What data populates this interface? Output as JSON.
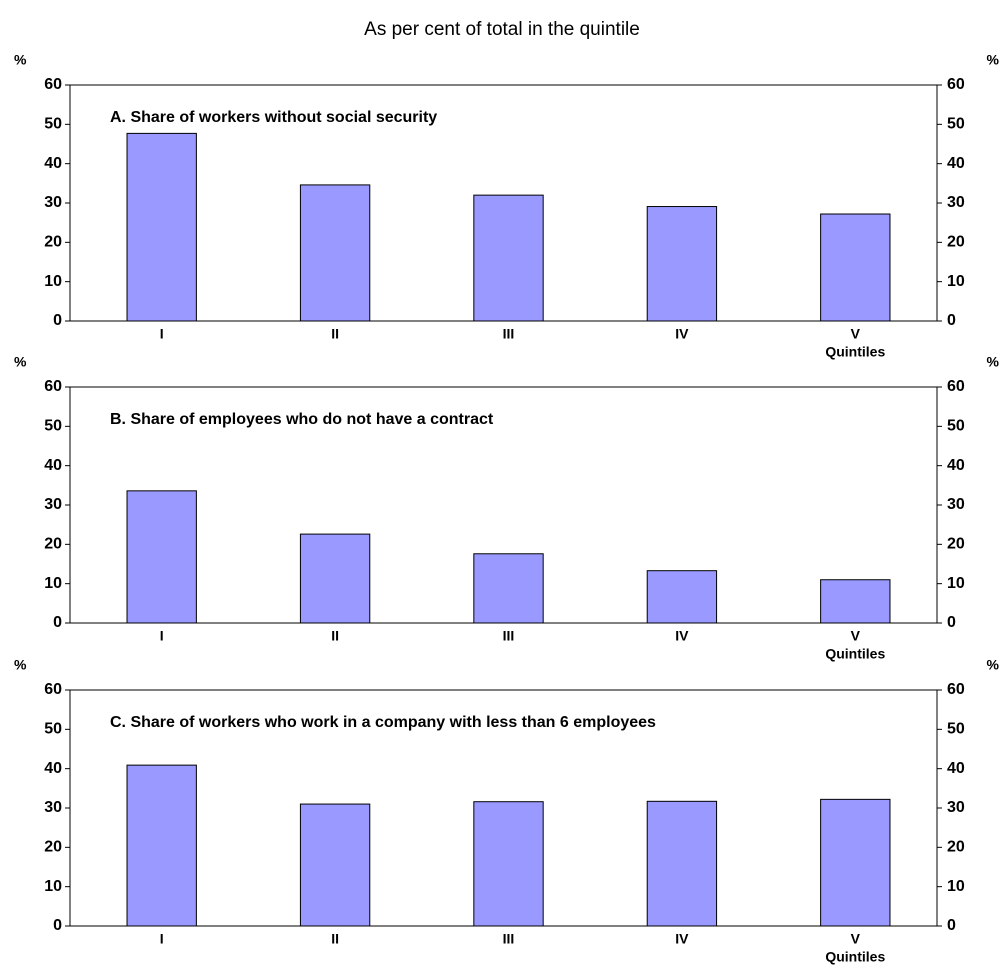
{
  "title": "As per cent of total in the quintile",
  "chart_data": [
    {
      "type": "bar",
      "title": "A. Share of workers without social security",
      "categories": [
        "I",
        "II",
        "III",
        "IV",
        "V"
      ],
      "values": [
        47.7,
        34.6,
        32,
        29.1,
        27.2
      ],
      "color": "#9999ff",
      "xlabel": "Quintiles",
      "ylabel": "%",
      "y2label": "%",
      "ylim": [
        0,
        60
      ],
      "yticks": [
        0,
        10,
        20,
        30,
        40,
        50,
        60
      ],
      "y2lim": [
        0,
        60
      ],
      "y2ticks": [
        0,
        10,
        20,
        30,
        40,
        50,
        60
      ],
      "grid": false
    },
    {
      "type": "bar",
      "title": "B. Share of employees who do not have a contract",
      "categories": [
        "I",
        "II",
        "III",
        "IV",
        "V"
      ],
      "values": [
        33.6,
        22.6,
        17.6,
        13.3,
        11
      ],
      "color": "#9999ff",
      "xlabel": "Quintiles",
      "ylabel": "%",
      "y2label": "%",
      "ylim": [
        0,
        60
      ],
      "yticks": [
        0,
        10,
        20,
        30,
        40,
        50,
        60
      ],
      "y2lim": [
        0,
        60
      ],
      "y2ticks": [
        0,
        10,
        20,
        30,
        40,
        50,
        60
      ],
      "grid": false
    },
    {
      "type": "bar",
      "title": "C. Share of workers who work in a company with less than 6 employees",
      "categories": [
        "I",
        "II",
        "III",
        "IV",
        "V"
      ],
      "values": [
        40.9,
        31,
        31.6,
        31.7,
        32.2
      ],
      "color": "#9999ff",
      "xlabel": "Quintiles",
      "ylabel": "%",
      "y2label": "%",
      "ylim": [
        0,
        60
      ],
      "yticks": [
        0,
        10,
        20,
        30,
        40,
        50,
        60
      ],
      "y2lim": [
        0,
        60
      ],
      "y2ticks": [
        0,
        10,
        20,
        30,
        40,
        50,
        60
      ],
      "grid": false
    }
  ]
}
